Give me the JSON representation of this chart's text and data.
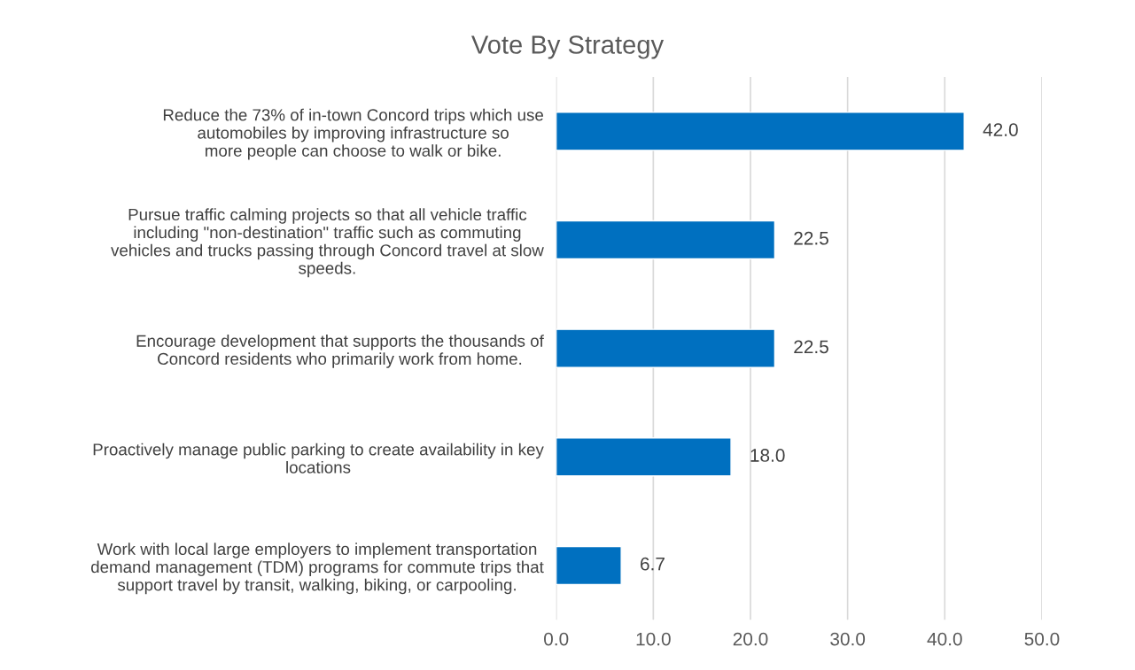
{
  "chart_data": {
    "type": "bar",
    "orientation": "horizontal",
    "title": "Vote By Strategy",
    "categories": [
      "Reduce the 73% of in-town Concord trips which use\nautomobiles by improving infrastructure so\nmore people can choose to walk or bike.",
      "Pursue traffic calming projects so that all vehicle traffic\nincluding \"non-destination\" traffic such as commuting\nvehicles and trucks passing through Concord travel at slow\nspeeds.",
      "Encourage development that supports the thousands of\nConcord residents who primarily work from home.",
      "Proactively manage public parking to create availability in key\nlocations",
      "Work with local large employers to implement transportation\ndemand management (TDM) programs for commute trips that\nsupport travel by transit, walking, biking, or carpooling."
    ],
    "values": [
      42.0,
      22.5,
      22.5,
      18.0,
      6.7
    ],
    "value_labels": [
      "42.0",
      "22.5",
      "22.5",
      "18.0",
      "6.7"
    ],
    "color": "#0070c0",
    "xlim": [
      0,
      50
    ],
    "xticks": [
      {
        "value": 0,
        "label": "0.0"
      },
      {
        "value": 10,
        "label": "10.0"
      },
      {
        "value": 20,
        "label": "20.0"
      },
      {
        "value": 30,
        "label": "30.0"
      },
      {
        "value": 40,
        "label": "40.0"
      },
      {
        "value": 50,
        "label": "50.0"
      }
    ],
    "grid": "x"
  }
}
